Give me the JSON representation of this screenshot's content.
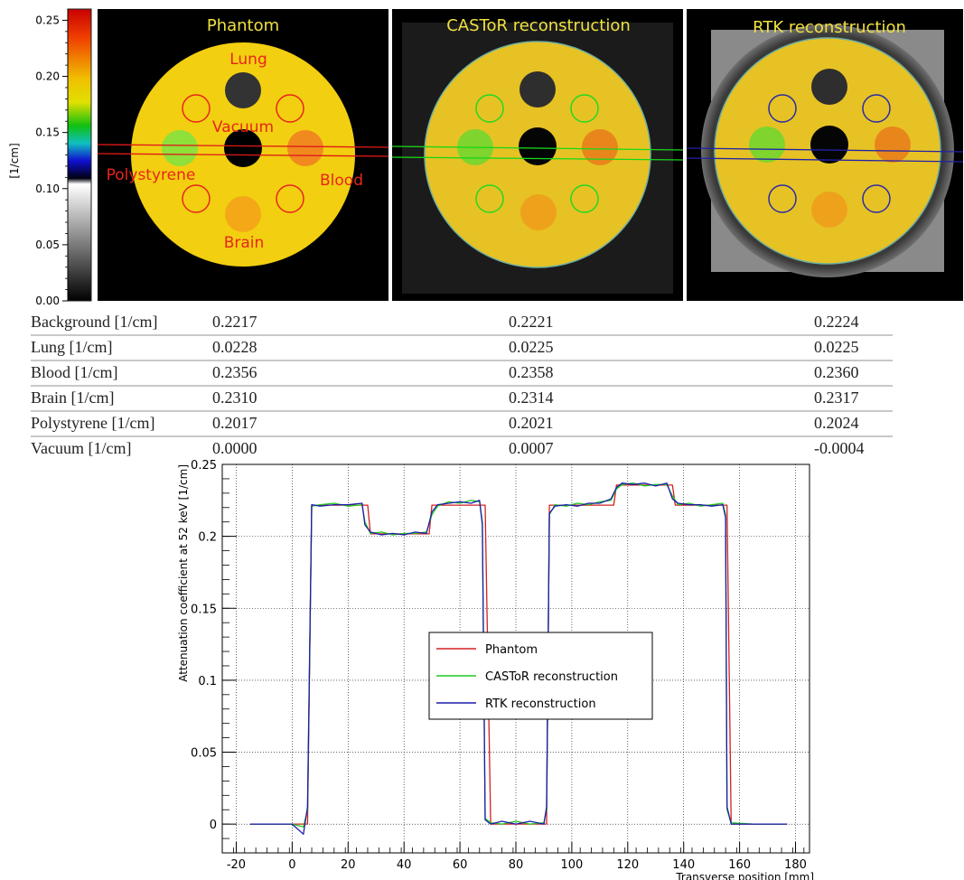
{
  "colorbar": {
    "ticks": [
      "0.25",
      "0.20",
      "0.15",
      "0.10",
      "0.05",
      "0.00"
    ],
    "tick_values": [
      0.25,
      0.2,
      0.15,
      0.1,
      0.05,
      0.0
    ],
    "unit_label": "[1/cm]"
  },
  "panels": [
    {
      "title": "Phantom",
      "ring_color": "#e8251b",
      "line_color": "#e01818"
    },
    {
      "title": "CASToR reconstruction",
      "ring_color": "#22d822",
      "line_color": "#18d818"
    },
    {
      "title": "RTK reconstruction",
      "ring_color": "#2b2ba6",
      "line_color": "#2222a8"
    }
  ],
  "phantom_labels": {
    "lung": "Lung",
    "vacuum": "Vacuum",
    "polystyrene": "Polystyrene",
    "blood": "Blood",
    "brain": "Brain"
  },
  "table": {
    "rows": [
      {
        "label": "Background [1/cm]",
        "phantom": "0.2217",
        "castor": "0.2221",
        "rtk": "0.2224"
      },
      {
        "label": "Lung [1/cm]",
        "phantom": "0.0228",
        "castor": "0.0225",
        "rtk": "0.0225"
      },
      {
        "label": "Blood [1/cm]",
        "phantom": "0.2356",
        "castor": "0.2358",
        "rtk": "0.2360"
      },
      {
        "label": "Brain [1/cm]",
        "phantom": "0.2310",
        "castor": "0.2314",
        "rtk": "0.2317"
      },
      {
        "label": "Polystyrene [1/cm]",
        "phantom": "0.2017",
        "castor": "0.2021",
        "rtk": "0.2024"
      },
      {
        "label": "Vacuum [1/cm]",
        "phantom": "0.0000",
        "castor": "0.0007",
        "rtk": "-0.0004"
      }
    ]
  },
  "chart_data": {
    "type": "line",
    "xlabel": "Transverse position [mm]",
    "ylabel": "Attenuation coefficient at 52 keV [1/cm]",
    "xlim": [
      -25,
      185
    ],
    "ylim": [
      -0.02,
      0.25
    ],
    "xticks": [
      -20,
      0,
      20,
      40,
      60,
      80,
      100,
      120,
      140,
      160,
      180
    ],
    "yticks": [
      0,
      0.05,
      0.1,
      0.15,
      0.2,
      0.25
    ],
    "ytick_labels": [
      "0",
      "0.05",
      "0.1",
      "0.15",
      "0.2",
      "0.25"
    ],
    "grid": true,
    "legend_position": "center-right",
    "series": [
      {
        "name": "Phantom",
        "color": "#d42020",
        "x": [
          -15,
          5.5,
          7,
          26,
          27,
          28,
          49,
          50,
          51,
          68,
          69,
          71,
          91,
          92,
          94,
          114,
          115,
          116,
          135,
          136,
          137,
          155,
          155.5,
          157,
          177
        ],
        "y": [
          0,
          0,
          0.2217,
          0.2217,
          0.2217,
          0.2017,
          0.2017,
          0.2217,
          0.2217,
          0.2217,
          0.2217,
          0,
          0,
          0.2217,
          0.2217,
          0.2217,
          0.2217,
          0.2356,
          0.2356,
          0.2356,
          0.2217,
          0.2217,
          0.2217,
          0,
          0
        ]
      },
      {
        "name": "CASToR reconstruction",
        "color": "#1ec81e",
        "x": [
          -15,
          0,
          4,
          5.5,
          7,
          10,
          15,
          20,
          25,
          26,
          28,
          32,
          36,
          40,
          44,
          48,
          50,
          52,
          56,
          60,
          64,
          67,
          68,
          69,
          71,
          75,
          80,
          85,
          90,
          91,
          92,
          94,
          98,
          102,
          106,
          110,
          114,
          116,
          118,
          122,
          126,
          130,
          134,
          136,
          138,
          142,
          146,
          150,
          154,
          155,
          155.5,
          157,
          165,
          177
        ],
        "y": [
          0,
          0,
          -0.002,
          0.01,
          0.221,
          0.222,
          0.223,
          0.221,
          0.222,
          0.21,
          0.202,
          0.203,
          0.201,
          0.202,
          0.202,
          0.203,
          0.215,
          0.221,
          0.224,
          0.223,
          0.225,
          0.224,
          0.21,
          0.004,
          0.001,
          0,
          0.002,
          0,
          0.001,
          0.01,
          0.215,
          0.222,
          0.221,
          0.223,
          0.222,
          0.224,
          0.225,
          0.233,
          0.236,
          0.237,
          0.235,
          0.236,
          0.236,
          0.228,
          0.222,
          0.223,
          0.221,
          0.222,
          0.223,
          0.215,
          0.01,
          0.001,
          0,
          0
        ]
      },
      {
        "name": "RTK reconstruction",
        "color": "#1c1caa",
        "x": [
          -15,
          0,
          4,
          5.5,
          7,
          10,
          15,
          20,
          25,
          26,
          28,
          32,
          36,
          40,
          44,
          48,
          50,
          52,
          56,
          60,
          64,
          67,
          68,
          69,
          71,
          75,
          80,
          85,
          90,
          91,
          92,
          94,
          98,
          102,
          106,
          110,
          114,
          116,
          118,
          122,
          126,
          130,
          134,
          136,
          138,
          142,
          146,
          150,
          154,
          155,
          155.5,
          157,
          165,
          177
        ],
        "y": [
          0,
          0,
          -0.007,
          0.012,
          0.222,
          0.221,
          0.222,
          0.222,
          0.223,
          0.208,
          0.203,
          0.201,
          0.202,
          0.201,
          0.203,
          0.202,
          0.217,
          0.222,
          0.223,
          0.224,
          0.223,
          0.225,
          0.208,
          0.003,
          0,
          0.002,
          0,
          0.002,
          0,
          0.012,
          0.216,
          0.221,
          0.222,
          0.221,
          0.223,
          0.223,
          0.226,
          0.234,
          0.237,
          0.236,
          0.237,
          0.235,
          0.237,
          0.226,
          0.223,
          0.222,
          0.222,
          0.221,
          0.222,
          0.213,
          0.012,
          0,
          0,
          0
        ]
      }
    ]
  }
}
